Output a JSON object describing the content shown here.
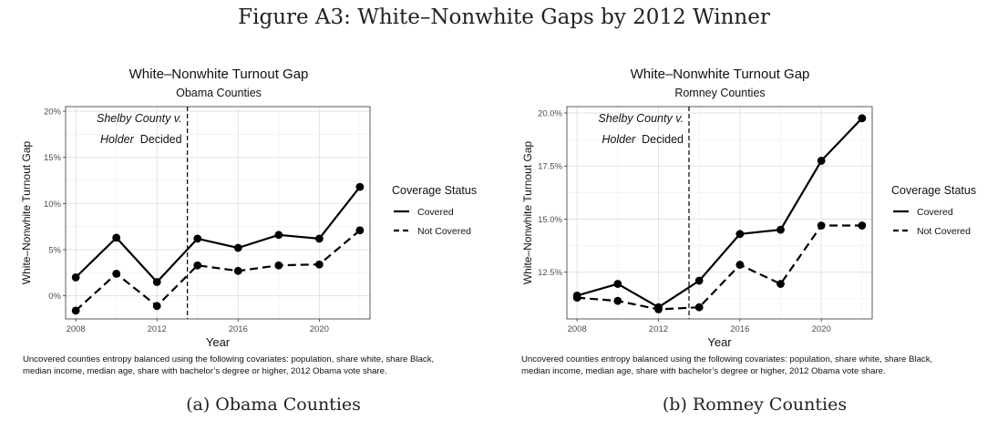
{
  "figure": {
    "title": "Figure A3: White–Nonwhite Gaps by 2012 Winner"
  },
  "chart_data": [
    {
      "type": "line",
      "panel_caption": "(a) Obama Counties",
      "title": "White–Nonwhite Turnout Gap",
      "subtitle": "Obama Counties",
      "xlabel": "Year",
      "ylabel": "White–Nonwhite Turnout Gap",
      "xlim": [
        2007.5,
        2022.5
      ],
      "ylim": [
        -2.5,
        20.5
      ],
      "x_ticks": [
        2008,
        2012,
        2016,
        2020
      ],
      "x_tick_labels": [
        "2008",
        "2012",
        "2016",
        "2020"
      ],
      "y_ticks": [
        0,
        5,
        10,
        15,
        20
      ],
      "y_tick_labels": [
        "0%",
        "5%",
        "10%",
        "15%",
        "20%"
      ],
      "vline_x": 2013.5,
      "annotation": [
        "Shelby County v.",
        "Holder",
        "Decided"
      ],
      "legend": {
        "title": "Coverage Status",
        "placement": "right",
        "entries": [
          "Covered",
          "Not Covered"
        ]
      },
      "grid": true,
      "x": [
        2008,
        2010,
        2012,
        2014,
        2016,
        2018,
        2020,
        2022
      ],
      "series": [
        {
          "name": "Covered",
          "style": "solid",
          "values": [
            2.0,
            6.3,
            1.5,
            6.2,
            5.2,
            6.6,
            6.2,
            11.8
          ]
        },
        {
          "name": "Not Covered",
          "style": "dashed",
          "values": [
            -1.6,
            2.4,
            -1.1,
            3.3,
            2.7,
            3.3,
            3.4,
            7.1
          ]
        }
      ],
      "note": "Uncovered counties entropy balanced using the following covariates: population, share white, share Black, median income, median age, share with bachelor’s degree or higher, 2012 Obama vote share."
    },
    {
      "type": "line",
      "panel_caption": "(b) Romney Counties",
      "title": "White–Nonwhite Turnout Gap",
      "subtitle": "Romney Counties",
      "xlabel": "Year",
      "ylabel": "White–Nonwhite Turnout Gap",
      "xlim": [
        2007.5,
        2022.5
      ],
      "ylim": [
        10.3,
        20.3
      ],
      "x_ticks": [
        2008,
        2012,
        2016,
        2020
      ],
      "x_tick_labels": [
        "2008",
        "2012",
        "2016",
        "2020"
      ],
      "y_ticks": [
        12.5,
        15,
        17.5,
        20
      ],
      "y_tick_labels": [
        "12.5%",
        "15.0%",
        "17.5%",
        "20.0%"
      ],
      "vline_x": 2013.5,
      "annotation": [
        "Shelby County v.",
        "Holder",
        "Decided"
      ],
      "legend": {
        "title": "Coverage Status",
        "placement": "right",
        "entries": [
          "Covered",
          "Not Covered"
        ]
      },
      "grid": true,
      "x": [
        2008,
        2010,
        2012,
        2014,
        2016,
        2018,
        2020,
        2022
      ],
      "series": [
        {
          "name": "Covered",
          "style": "solid",
          "values": [
            11.4,
            11.95,
            10.85,
            12.1,
            14.3,
            14.5,
            17.75,
            19.75
          ]
        },
        {
          "name": "Not Covered",
          "style": "dashed",
          "values": [
            11.3,
            11.15,
            10.75,
            10.85,
            12.85,
            11.95,
            14.7,
            14.7
          ]
        }
      ],
      "note": "Uncovered counties entropy balanced using the following covariates: population, share white, share Black, median income, median age, share with bachelor’s degree or higher, 2012 Obama vote share."
    }
  ]
}
